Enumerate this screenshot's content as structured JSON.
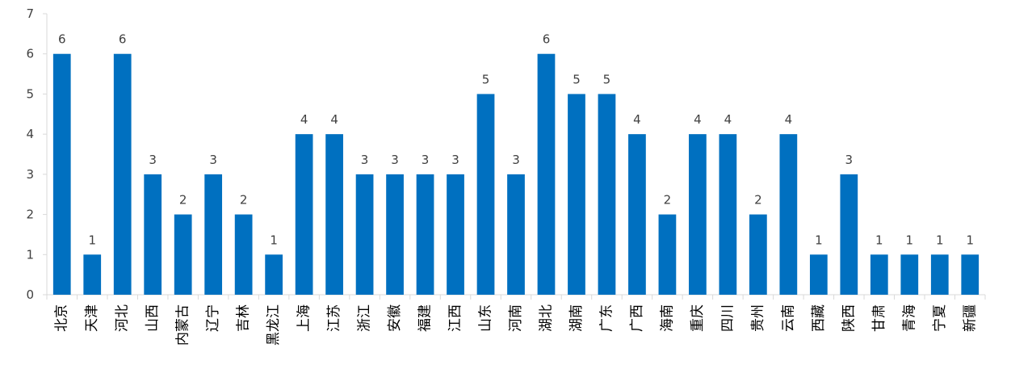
{
  "chart_data": {
    "type": "bar",
    "categories": [
      "北京",
      "天津",
      "河北",
      "山西",
      "内蒙古",
      "辽宁",
      "吉林",
      "黑龙江",
      "上海",
      "江苏",
      "浙江",
      "安徽",
      "福建",
      "江西",
      "山东",
      "河南",
      "湖北",
      "湖南",
      "广东",
      "广西",
      "海南",
      "重庆",
      "四川",
      "贵州",
      "云南",
      "西藏",
      "陕西",
      "甘肃",
      "青海",
      "宁夏",
      "新疆"
    ],
    "values": [
      6,
      1,
      6,
      3,
      2,
      3,
      2,
      1,
      4,
      4,
      3,
      3,
      3,
      3,
      5,
      3,
      6,
      5,
      5,
      4,
      2,
      4,
      4,
      2,
      4,
      1,
      3,
      1,
      1,
      1,
      1
    ],
    "data_labels": [
      "6",
      "1",
      "6",
      "3",
      "2",
      "3",
      "2",
      "1",
      "4",
      "4",
      "3",
      "3",
      "3",
      "3",
      "5",
      "3",
      "6",
      "5",
      "5",
      "4",
      "2",
      "4",
      "4",
      "2",
      "4",
      "1",
      "3",
      "1",
      "1",
      "1",
      "1"
    ],
    "yticks": [
      "0",
      "1",
      "2",
      "3",
      "4",
      "5",
      "6",
      "7"
    ],
    "ylim": [
      0,
      7
    ],
    "title": "",
    "xlabel": "",
    "ylabel": "",
    "bar_color": "#0070C0",
    "axis_color": "#D9D9D9",
    "grid": false,
    "legend": "none"
  }
}
